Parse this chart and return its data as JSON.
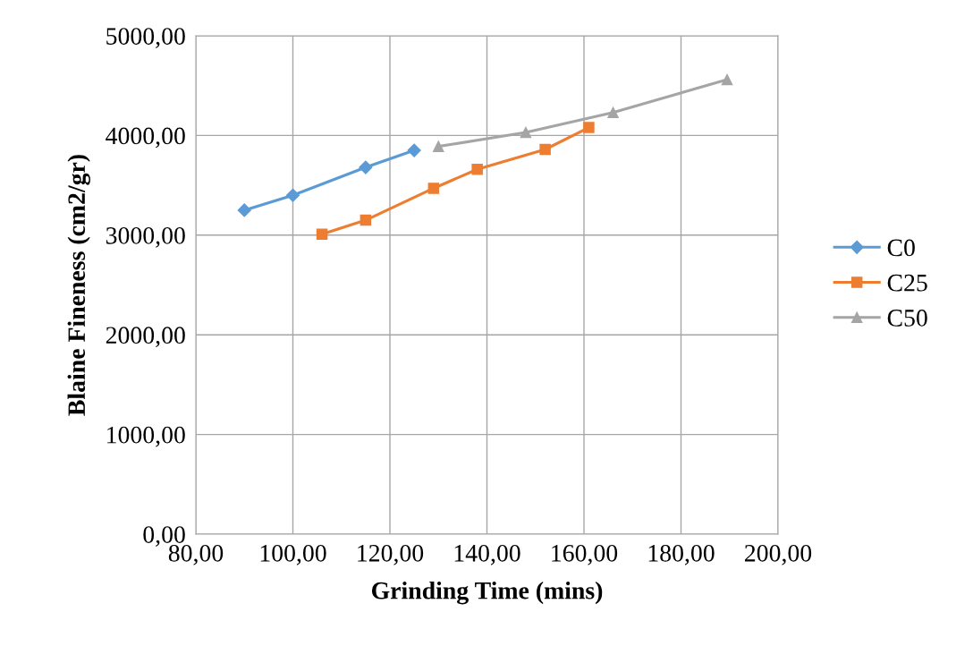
{
  "chart_data": {
    "type": "line",
    "xlabel": "Grinding Time (mins)",
    "ylabel": "Blaine Fineness (cm2/gr)",
    "xlim": [
      80,
      200
    ],
    "ylim": [
      0,
      5000
    ],
    "xticks": [
      {
        "value": 80,
        "label": "80,00"
      },
      {
        "value": 100,
        "label": "100,00"
      },
      {
        "value": 120,
        "label": "120,00"
      },
      {
        "value": 140,
        "label": "140,00"
      },
      {
        "value": 160,
        "label": "160,00"
      },
      {
        "value": 180,
        "label": "180,00"
      },
      {
        "value": 200,
        "label": "200,00"
      }
    ],
    "yticks": [
      {
        "value": 0,
        "label": "0,00"
      },
      {
        "value": 1000,
        "label": "1000,00"
      },
      {
        "value": 2000,
        "label": "2000,00"
      },
      {
        "value": 3000,
        "label": "3000,00"
      },
      {
        "value": 4000,
        "label": "4000,00"
      },
      {
        "value": 5000,
        "label": "5000,00"
      }
    ],
    "grid": true,
    "legend": "right",
    "series": [
      {
        "name": "C0",
        "color": "#5b9bd5",
        "marker": "diamond",
        "x": [
          90,
          100,
          115,
          125
        ],
        "values": [
          3250,
          3400,
          3680,
          3850
        ]
      },
      {
        "name": "C25",
        "color": "#ed7d31",
        "marker": "square",
        "x": [
          106,
          115,
          129,
          138,
          152,
          161
        ],
        "values": [
          3010,
          3150,
          3470,
          3660,
          3860,
          4080
        ]
      },
      {
        "name": "C50",
        "color": "#a5a5a5",
        "marker": "triangle",
        "x": [
          130,
          148,
          166,
          189.5
        ],
        "values": [
          3890,
          4030,
          4230,
          4560
        ]
      }
    ]
  }
}
